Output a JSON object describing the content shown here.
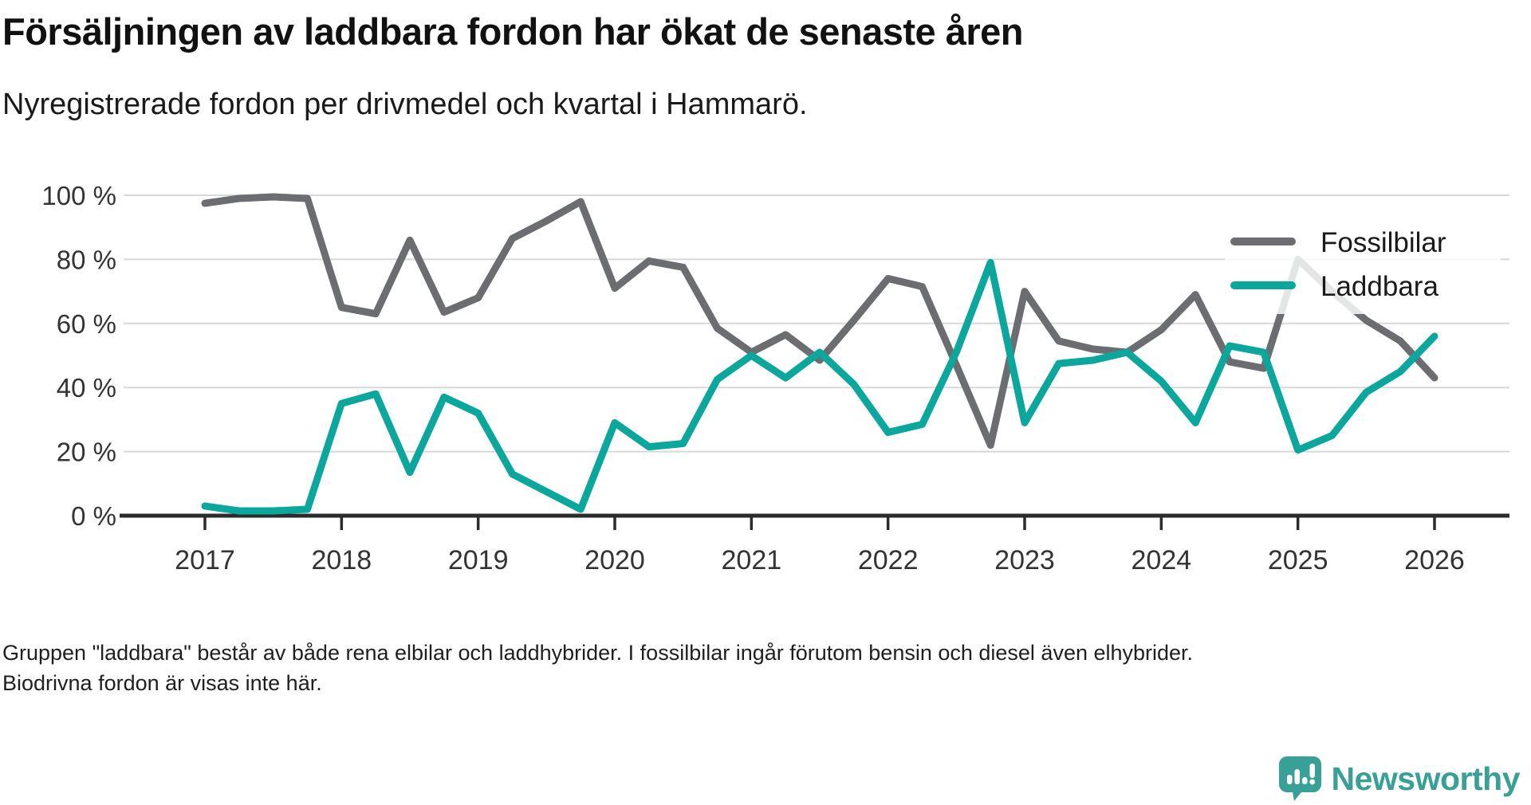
{
  "header": {
    "title": "Försäljningen av laddbara fordon har ökat de senaste åren",
    "subtitle": "Nyregistrerade fordon per drivmedel och kvartal i Hammarö."
  },
  "footnote": "Gruppen \"laddbara\" består av både rena elbilar och laddhybrider. I fossilbilar ingår förutom bensin och diesel även elhybrider. Biodrivna fordon är visas inte här.",
  "branding": {
    "logo_text": "Newsworthy",
    "logo_color": "#38a096"
  },
  "colors": {
    "fossil_line": "#6c6d70",
    "laddbara_line": "#0ba79c",
    "gridline": "#d8d8d8",
    "axis": "#2b2b2b",
    "tick_label": "#333333",
    "legend_text": "#1a1a1a"
  },
  "chart_data": {
    "type": "line",
    "title": "Försäljningen av laddbara fordon har ökat de senaste åren",
    "subtitle": "Nyregistrerade fordon per drivmedel och kvartal i Hammarö.",
    "xlabel": "",
    "ylabel": "",
    "ylim": [
      0,
      100
    ],
    "grid": "horizontal",
    "legend_position": "inside-right",
    "y_ticks": [
      {
        "value": 100,
        "label": "100 %"
      },
      {
        "value": 80,
        "label": "80 %"
      },
      {
        "value": 60,
        "label": "60 %"
      },
      {
        "value": 40,
        "label": "40 %"
      },
      {
        "value": 20,
        "label": "20 %"
      },
      {
        "value": 0,
        "label": "0 %"
      }
    ],
    "x_tick_labels": [
      "2017",
      "2018",
      "2019",
      "2020",
      "2021",
      "2022",
      "2023",
      "2024",
      "2025",
      "2026"
    ],
    "x": [
      "2017 Q1",
      "2017 Q2",
      "2017 Q3",
      "2017 Q4",
      "2018 Q1",
      "2018 Q2",
      "2018 Q3",
      "2018 Q4",
      "2019 Q1",
      "2019 Q2",
      "2019 Q3",
      "2019 Q4",
      "2020 Q1",
      "2020 Q2",
      "2020 Q3",
      "2020 Q4",
      "2021 Q1",
      "2021 Q2",
      "2021 Q3",
      "2021 Q4",
      "2022 Q1",
      "2022 Q2",
      "2022 Q3",
      "2022 Q4",
      "2023 Q1",
      "2023 Q2",
      "2023 Q3",
      "2023 Q4",
      "2024 Q1",
      "2024 Q2",
      "2024 Q3",
      "2024 Q4",
      "2025 Q1",
      "2025 Q2",
      "2025 Q3",
      "2025 Q4",
      "2026 Q1"
    ],
    "unit": "%",
    "series": [
      {
        "name": "Fossilbilar",
        "color": "#6c6d70",
        "values": [
          97.5,
          99,
          99.5,
          99,
          65,
          63,
          86,
          63.5,
          68,
          86.5,
          92,
          98,
          71,
          79.5,
          77.5,
          58.5,
          51,
          56.5,
          48.5,
          61,
          74,
          71.5,
          47,
          22,
          70,
          54.5,
          52,
          51,
          58,
          69,
          48,
          46,
          80,
          70,
          61,
          54.5,
          43
        ]
      },
      {
        "name": "Laddbara",
        "color": "#0ba79c",
        "values": [
          3,
          1.5,
          1.5,
          2,
          35,
          38,
          13.5,
          37,
          32,
          13,
          7.5,
          2,
          29,
          21.5,
          22.5,
          42.5,
          50,
          43,
          51,
          41,
          26,
          28.5,
          51,
          79,
          29,
          47.5,
          48.5,
          51,
          42,
          29,
          53,
          51,
          20.5,
          25,
          38.5,
          45,
          56
        ]
      }
    ]
  }
}
